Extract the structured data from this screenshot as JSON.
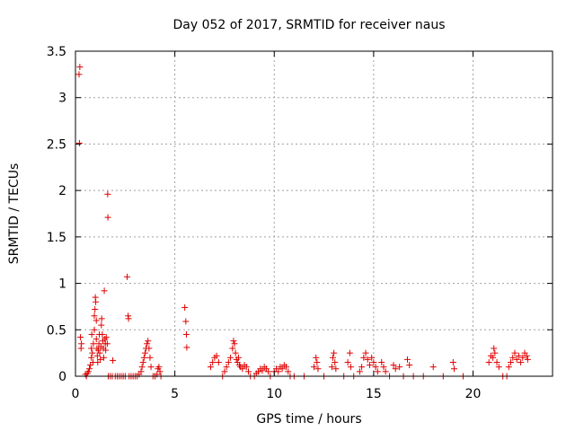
{
  "chart_data": {
    "type": "scatter",
    "title": "Day 052 of 2017, SRMTID for receiver naus",
    "xlabel": "GPS time / hours",
    "ylabel": "SRMTID / TECUs",
    "xlim": [
      0,
      24
    ],
    "ylim": [
      0,
      3.5
    ],
    "xticks": [
      0,
      5,
      10,
      15,
      20
    ],
    "xtick_labels": [
      "0",
      "5",
      "10",
      "15",
      "20"
    ],
    "yticks": [
      0,
      0.5,
      1,
      1.5,
      2,
      2.5,
      3,
      3.5
    ],
    "ytick_labels": [
      "0",
      "0.5",
      "1",
      "1.5",
      "2",
      "2.5",
      "3",
      "3.5"
    ],
    "grid": true,
    "legend": "none",
    "marker": "plus",
    "color": "#e00000",
    "series": [
      {
        "points": [
          [
            0.22,
            3.33
          ],
          [
            0.18,
            3.25
          ],
          [
            0.2,
            2.51
          ],
          [
            0.25,
            0.42
          ],
          [
            0.3,
            0.35
          ],
          [
            0.28,
            0.3
          ],
          [
            0.5,
            0.02
          ],
          [
            0.55,
            0.0
          ],
          [
            0.6,
            0.03
          ],
          [
            0.65,
            0.05
          ],
          [
            0.7,
            0.08
          ],
          [
            0.75,
            0.12
          ],
          [
            0.8,
            0.2
          ],
          [
            0.8,
            0.3
          ],
          [
            0.82,
            0.45
          ],
          [
            0.85,
            0.25
          ],
          [
            0.88,
            0.15
          ],
          [
            0.9,
            0.35
          ],
          [
            0.95,
            0.5
          ],
          [
            0.95,
            0.65
          ],
          [
            0.98,
            0.72
          ],
          [
            1.0,
            0.85
          ],
          [
            1.02,
            0.8
          ],
          [
            1.05,
            0.6
          ],
          [
            1.05,
            0.4
          ],
          [
            1.08,
            0.3
          ],
          [
            1.1,
            0.22
          ],
          [
            1.12,
            0.15
          ],
          [
            1.15,
            0.28
          ],
          [
            1.18,
            0.35
          ],
          [
            1.2,
            0.45
          ],
          [
            1.22,
            0.25
          ],
          [
            1.25,
            0.18
          ],
          [
            1.28,
            0.32
          ],
          [
            1.3,
            0.55
          ],
          [
            1.32,
            0.62
          ],
          [
            1.35,
            0.45
          ],
          [
            1.38,
            0.38
          ],
          [
            1.4,
            0.3
          ],
          [
            1.42,
            0.2
          ],
          [
            1.45,
            0.92
          ],
          [
            1.48,
            0.4
          ],
          [
            1.5,
            0.35
          ],
          [
            1.52,
            0.28
          ],
          [
            1.55,
            0.42
          ],
          [
            1.6,
            0.35
          ],
          [
            1.62,
            1.96
          ],
          [
            1.63,
            1.71
          ],
          [
            1.65,
            0.0
          ],
          [
            1.75,
            0.0
          ],
          [
            1.85,
            0.0
          ],
          [
            1.88,
            0.17
          ],
          [
            2.0,
            0.0
          ],
          [
            2.1,
            0.0
          ],
          [
            2.2,
            0.0
          ],
          [
            2.3,
            0.0
          ],
          [
            2.4,
            0.0
          ],
          [
            2.5,
            0.0
          ],
          [
            2.6,
            1.07
          ],
          [
            2.65,
            0.65
          ],
          [
            2.67,
            0.62
          ],
          [
            2.7,
            0.0
          ],
          [
            2.8,
            0.0
          ],
          [
            2.9,
            0.0
          ],
          [
            3.0,
            0.0
          ],
          [
            3.1,
            0.0
          ],
          [
            3.2,
            0.02
          ],
          [
            3.3,
            0.05
          ],
          [
            3.35,
            0.1
          ],
          [
            3.4,
            0.15
          ],
          [
            3.45,
            0.2
          ],
          [
            3.5,
            0.25
          ],
          [
            3.55,
            0.3
          ],
          [
            3.6,
            0.35
          ],
          [
            3.65,
            0.38
          ],
          [
            3.7,
            0.3
          ],
          [
            3.75,
            0.2
          ],
          [
            3.8,
            0.1
          ],
          [
            3.9,
            0.0
          ],
          [
            4.0,
            0.0
          ],
          [
            4.1,
            0.02
          ],
          [
            4.15,
            0.08
          ],
          [
            4.2,
            0.1
          ],
          [
            4.25,
            0.05
          ],
          [
            4.3,
            0.0
          ],
          [
            5.5,
            0.74
          ],
          [
            5.55,
            0.59
          ],
          [
            5.58,
            0.45
          ],
          [
            5.6,
            0.31
          ],
          [
            6.8,
            0.1
          ],
          [
            6.9,
            0.15
          ],
          [
            7.0,
            0.2
          ],
          [
            7.1,
            0.22
          ],
          [
            7.2,
            0.15
          ],
          [
            7.4,
            0.0
          ],
          [
            7.5,
            0.05
          ],
          [
            7.6,
            0.1
          ],
          [
            7.7,
            0.15
          ],
          [
            7.8,
            0.2
          ],
          [
            7.9,
            0.3
          ],
          [
            7.95,
            0.38
          ],
          [
            8.0,
            0.35
          ],
          [
            8.05,
            0.25
          ],
          [
            8.1,
            0.18
          ],
          [
            8.15,
            0.15
          ],
          [
            8.2,
            0.2
          ],
          [
            8.25,
            0.12
          ],
          [
            8.3,
            0.1
          ],
          [
            8.4,
            0.08
          ],
          [
            8.5,
            0.12
          ],
          [
            8.6,
            0.1
          ],
          [
            8.7,
            0.05
          ],
          [
            8.8,
            0.0
          ],
          [
            9.0,
            0.0
          ],
          [
            9.1,
            0.03
          ],
          [
            9.2,
            0.05
          ],
          [
            9.3,
            0.08
          ],
          [
            9.4,
            0.06
          ],
          [
            9.5,
            0.1
          ],
          [
            9.6,
            0.08
          ],
          [
            9.7,
            0.05
          ],
          [
            9.8,
            0.0
          ],
          [
            10.0,
            0.05
          ],
          [
            10.1,
            0.08
          ],
          [
            10.2,
            0.05
          ],
          [
            10.3,
            0.1
          ],
          [
            10.4,
            0.08
          ],
          [
            10.5,
            0.12
          ],
          [
            10.6,
            0.1
          ],
          [
            10.7,
            0.05
          ],
          [
            10.8,
            0.0
          ],
          [
            11.0,
            0.0
          ],
          [
            11.5,
            0.0
          ],
          [
            12.0,
            0.1
          ],
          [
            12.1,
            0.2
          ],
          [
            12.15,
            0.15
          ],
          [
            12.2,
            0.08
          ],
          [
            12.5,
            0.0
          ],
          [
            12.9,
            0.1
          ],
          [
            12.95,
            0.2
          ],
          [
            13.0,
            0.25
          ],
          [
            13.05,
            0.15
          ],
          [
            13.1,
            0.08
          ],
          [
            13.5,
            0.0
          ],
          [
            13.7,
            0.15
          ],
          [
            13.8,
            0.25
          ],
          [
            13.85,
            0.1
          ],
          [
            14.0,
            0.0
          ],
          [
            14.3,
            0.05
          ],
          [
            14.4,
            0.1
          ],
          [
            14.5,
            0.2
          ],
          [
            14.6,
            0.25
          ],
          [
            14.7,
            0.18
          ],
          [
            14.8,
            0.12
          ],
          [
            14.9,
            0.2
          ],
          [
            15.0,
            0.15
          ],
          [
            15.1,
            0.1
          ],
          [
            15.2,
            0.05
          ],
          [
            15.4,
            0.15
          ],
          [
            15.5,
            0.1
          ],
          [
            15.6,
            0.05
          ],
          [
            15.8,
            0.0
          ],
          [
            16.0,
            0.12
          ],
          [
            16.1,
            0.08
          ],
          [
            16.3,
            0.1
          ],
          [
            16.5,
            0.0
          ],
          [
            16.7,
            0.18
          ],
          [
            16.8,
            0.12
          ],
          [
            17.0,
            0.0
          ],
          [
            17.5,
            0.0
          ],
          [
            18.0,
            0.1
          ],
          [
            18.5,
            0.0
          ],
          [
            19.0,
            0.15
          ],
          [
            19.05,
            0.08
          ],
          [
            19.5,
            0.0
          ],
          [
            20.8,
            0.15
          ],
          [
            20.9,
            0.22
          ],
          [
            21.0,
            0.2
          ],
          [
            21.05,
            0.3
          ],
          [
            21.1,
            0.25
          ],
          [
            21.2,
            0.15
          ],
          [
            21.3,
            0.1
          ],
          [
            21.5,
            0.0
          ],
          [
            21.7,
            0.0
          ],
          [
            21.8,
            0.1
          ],
          [
            21.9,
            0.15
          ],
          [
            22.0,
            0.2
          ],
          [
            22.1,
            0.25
          ],
          [
            22.2,
            0.18
          ],
          [
            22.3,
            0.22
          ],
          [
            22.4,
            0.15
          ],
          [
            22.5,
            0.2
          ],
          [
            22.6,
            0.25
          ],
          [
            22.7,
            0.22
          ],
          [
            22.75,
            0.18
          ]
        ]
      }
    ]
  }
}
